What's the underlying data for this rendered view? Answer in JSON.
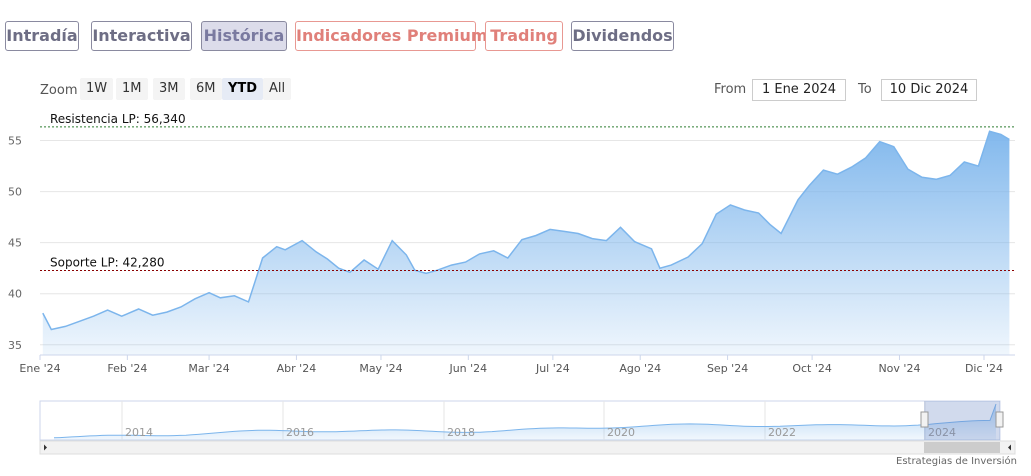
{
  "tabs": [
    {
      "label": "Intradía",
      "style": "gray"
    },
    {
      "label": "Interactiva",
      "style": "gray"
    },
    {
      "label": "Histórica",
      "style": "active"
    },
    {
      "label": "Indicadores Premium",
      "style": "red"
    },
    {
      "label": "Trading",
      "style": "red"
    },
    {
      "label": "Dividendos",
      "style": "gray"
    }
  ],
  "toolbar": {
    "zoom_label": "Zoom",
    "zoom_buttons": [
      "1W",
      "1M",
      "3M",
      "6M",
      "YTD",
      "All"
    ],
    "zoom_selected": "YTD",
    "from_label": "From",
    "from_value": "1 Ene 2024",
    "to_label": "To",
    "to_value": "10 Dic 2024"
  },
  "credits": "Estrategias de Inversión",
  "colors": {
    "series": "#7cb5ec",
    "resistance": "#2e7d32",
    "support": "#8b0000",
    "tab_red": "#e0807a",
    "tab_gray": "#6e6e85"
  },
  "chart_data": {
    "type": "area",
    "title": "",
    "ylim": [
      34,
      57.5
    ],
    "y_ticks": [
      35,
      40,
      45,
      50,
      55
    ],
    "x_tick_labels": [
      "Ene '24",
      "Feb '24",
      "Mar '24",
      "Abr '24",
      "May '24",
      "Jun '24",
      "Jul '24",
      "Ago '24",
      "Sep '24",
      "Oct '24",
      "Nov '24",
      "Dic '24"
    ],
    "grid": true,
    "series": [
      {
        "x": [
          "2024-01-02",
          "2024-01-05",
          "2024-01-10",
          "2024-01-15",
          "2024-01-20",
          "2024-01-25",
          "2024-01-30",
          "2024-02-05",
          "2024-02-10",
          "2024-02-15",
          "2024-02-20",
          "2024-02-25",
          "2024-03-01",
          "2024-03-05",
          "2024-03-10",
          "2024-03-15",
          "2024-03-20",
          "2024-03-25",
          "2024-03-28",
          "2024-04-03",
          "2024-04-08",
          "2024-04-12",
          "2024-04-16",
          "2024-04-20",
          "2024-04-25",
          "2024-04-30",
          "2024-05-05",
          "2024-05-10",
          "2024-05-13",
          "2024-05-17",
          "2024-05-21",
          "2024-05-26",
          "2024-05-31",
          "2024-06-05",
          "2024-06-10",
          "2024-06-15",
          "2024-06-20",
          "2024-06-25",
          "2024-06-30",
          "2024-07-05",
          "2024-07-10",
          "2024-07-15",
          "2024-07-20",
          "2024-07-25",
          "2024-07-30",
          "2024-08-05",
          "2024-08-08",
          "2024-08-12",
          "2024-08-18",
          "2024-08-23",
          "2024-08-28",
          "2024-09-02",
          "2024-09-07",
          "2024-09-12",
          "2024-09-16",
          "2024-09-20",
          "2024-09-26",
          "2024-09-30",
          "2024-10-05",
          "2024-10-10",
          "2024-10-15",
          "2024-10-20",
          "2024-10-25",
          "2024-10-30",
          "2024-11-04",
          "2024-11-09",
          "2024-11-14",
          "2024-11-19",
          "2024-11-24",
          "2024-11-29",
          "2024-12-03",
          "2024-12-07",
          "2024-12-10"
        ],
        "values": [
          38.1,
          36.5,
          36.8,
          37.3,
          37.8,
          38.4,
          37.8,
          38.5,
          37.9,
          38.2,
          38.7,
          39.5,
          40.1,
          39.6,
          39.8,
          39.2,
          43.5,
          44.6,
          44.3,
          45.2,
          44.1,
          43.4,
          42.5,
          42.1,
          43.3,
          42.4,
          45.2,
          43.8,
          42.3,
          42.0,
          42.3,
          42.8,
          43.1,
          43.9,
          44.2,
          43.5,
          45.3,
          45.7,
          46.3,
          46.1,
          45.9,
          45.4,
          45.2,
          46.5,
          45.1,
          44.4,
          42.5,
          42.8,
          43.6,
          44.9,
          47.8,
          48.7,
          48.2,
          47.9,
          46.8,
          45.9,
          49.2,
          50.6,
          52.1,
          51.7,
          52.4,
          53.3,
          54.9,
          54.4,
          52.2,
          51.4,
          51.2,
          51.6,
          52.9,
          52.5,
          55.9,
          55.6,
          55.1
        ]
      }
    ],
    "annotations": [
      {
        "label": "Resistencia LP: 56,340",
        "value": 56.34
      },
      {
        "label": "Soporte LP: 42,280",
        "value": 42.28
      }
    ],
    "navigator": {
      "x_tick_labels": [
        "2014",
        "2016",
        "2018",
        "2020",
        "2022",
        "2024"
      ]
    }
  }
}
